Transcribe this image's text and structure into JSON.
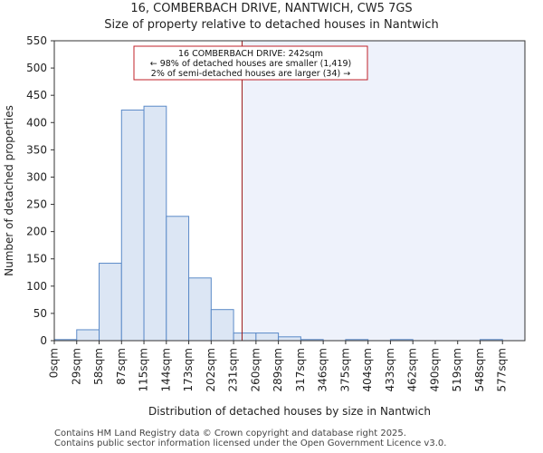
{
  "chart_data": {
    "type": "bar",
    "title": "16, COMBERBACH DRIVE, NANTWICH, CW5 7GS",
    "subtitle": "Size of property relative to detached houses in Nantwich",
    "xlabel": "Distribution of detached houses by size in Nantwich",
    "ylabel": "Number of detached properties",
    "ylim": [
      0,
      550
    ],
    "yticks": [
      0,
      50,
      100,
      150,
      200,
      250,
      300,
      350,
      400,
      450,
      500,
      550
    ],
    "bin_edges": [
      0,
      29,
      58,
      87,
      115,
      144,
      173,
      202,
      231,
      260,
      289,
      317,
      346,
      375,
      404,
      433,
      462,
      490,
      519,
      548,
      577,
      606
    ],
    "categories": [
      "0sqm",
      "29sqm",
      "58sqm",
      "87sqm",
      "115sqm",
      "144sqm",
      "173sqm",
      "202sqm",
      "231sqm",
      "260sqm",
      "289sqm",
      "317sqm",
      "346sqm",
      "375sqm",
      "404sqm",
      "433sqm",
      "462sqm",
      "490sqm",
      "519sqm",
      "548sqm",
      "577sqm"
    ],
    "values": [
      2,
      20,
      142,
      423,
      430,
      228,
      115,
      57,
      14,
      14,
      7,
      2,
      0,
      2,
      0,
      2,
      0,
      0,
      0,
      2,
      0
    ],
    "marker_value": 242,
    "annotation": {
      "line1": "16 COMBERBACH DRIVE: 242sqm",
      "line2": "← 98% of detached houses are smaller (1,419)",
      "line3": "2% of semi-detached houses are larger (34) →"
    },
    "colors": {
      "bar_fill": "#dce6f4",
      "bar_stroke": "#5b8ac8",
      "marker": "#9b1b1b",
      "shade": "#eef2fb",
      "annotation_border": "#c0202a"
    }
  },
  "footer": {
    "line1": "Contains HM Land Registry data © Crown copyright and database right 2025.",
    "line2": "Contains public sector information licensed under the Open Government Licence v3.0."
  }
}
